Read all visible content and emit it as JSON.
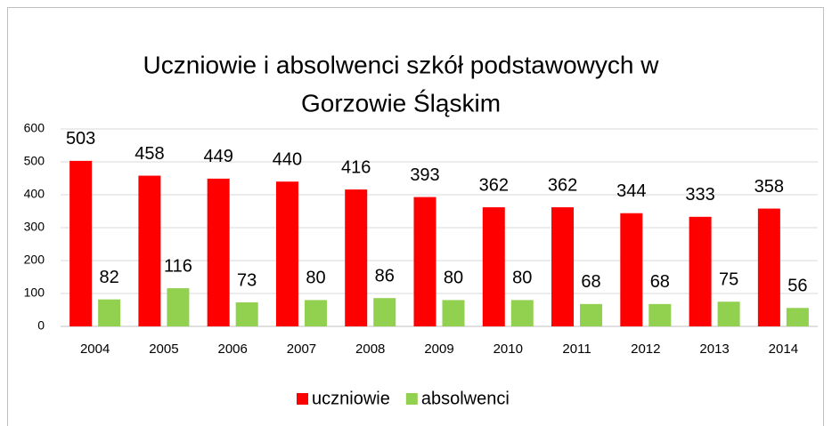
{
  "chart_data": {
    "type": "bar",
    "title": [
      "Uczniowie i absolwenci szkół podstawowych w",
      "Gorzowie Śląskim"
    ],
    "categories": [
      "2004",
      "2005",
      "2006",
      "2007",
      "2008",
      "2009",
      "2010",
      "2011",
      "2012",
      "2013",
      "2014"
    ],
    "series": [
      {
        "name": "uczniowie",
        "color": "#ff0000",
        "values": [
          503,
          458,
          449,
          440,
          416,
          393,
          362,
          362,
          344,
          333,
          358
        ]
      },
      {
        "name": "absolwenci",
        "color": "#92d050",
        "values": [
          82,
          116,
          73,
          80,
          86,
          80,
          80,
          68,
          68,
          75,
          56
        ]
      }
    ],
    "ylim": [
      0,
      600
    ],
    "yticks": [
      0,
      100,
      200,
      300,
      400,
      500,
      600
    ],
    "grid": true,
    "legend": "bottom"
  }
}
